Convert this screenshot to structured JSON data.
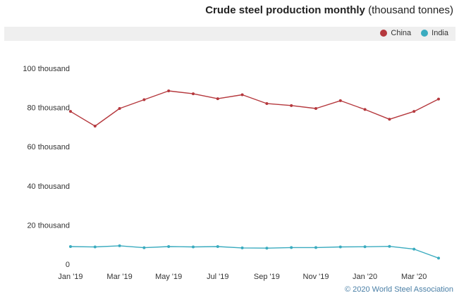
{
  "title": {
    "main": "Crude steel production monthly",
    "unit": "(thousand tonnes)"
  },
  "credit": "© 2020 World Steel Association",
  "chart_data": {
    "type": "line",
    "x": [
      "Jan '19",
      "Feb '19",
      "Mar '19",
      "Apr '19",
      "May '19",
      "Jun '19",
      "Jul '19",
      "Aug '19",
      "Sep '19",
      "Oct '19",
      "Nov '19",
      "Dec '19",
      "Jan '20",
      "Feb '20",
      "Mar '20",
      "Apr '20"
    ],
    "x_tick_labels": [
      "Jan '19",
      "Mar '19",
      "May '19",
      "Jul '19",
      "Sep '19",
      "Nov '19",
      "Jan '20",
      "Mar '20"
    ],
    "y_tick_labels": [
      "0",
      "20 thousand",
      "40 thousand",
      "60 thousand",
      "80 thousand",
      "100 thousand"
    ],
    "y_ticks": [
      0,
      20000,
      40000,
      60000,
      80000,
      100000
    ],
    "ylim": [
      0,
      100000
    ],
    "grid": false,
    "legend_position": "top-right",
    "series": [
      {
        "name": "China",
        "color": "#b5383d",
        "values": [
          78000,
          70500,
          79500,
          84000,
          88500,
          87000,
          84500,
          86500,
          82000,
          81000,
          79500,
          83500,
          79000,
          74000,
          78000,
          84300
        ]
      },
      {
        "name": "India",
        "color": "#3aabbf",
        "values": [
          9000,
          8800,
          9400,
          8400,
          9000,
          8800,
          9000,
          8300,
          8200,
          8500,
          8500,
          8800,
          8900,
          9100,
          7700,
          3100
        ]
      }
    ]
  }
}
